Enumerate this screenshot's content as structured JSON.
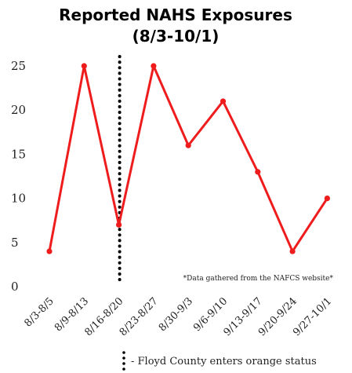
{
  "chart_data": {
    "type": "line",
    "title_lines": [
      "Reported NAHS Exposures",
      "(8/3-10/1)"
    ],
    "categories": [
      "8/3-8/5",
      "8/9-8/13",
      "8/16-8/20",
      "8/23-8/27",
      "8/30-9/3",
      "9/6-9/10",
      "9/13-9/17",
      "9/20-9/24",
      "9/27-10/1"
    ],
    "series": [
      {
        "values": [
          4,
          25,
          7,
          25,
          16,
          21,
          13,
          4,
          10
        ],
        "color": "#ee1c1c"
      }
    ],
    "ylim": [
      0,
      25
    ],
    "yticks": [
      0,
      5,
      10,
      15,
      20,
      25
    ],
    "grid": false,
    "annotation": "*Data gathered from the NAFCS website*",
    "marker_line": {
      "between": [
        "8/16-8/20",
        "8/23-8/27"
      ],
      "style": "dotted",
      "color": "#000000"
    },
    "legend": {
      "text": "- Floyd County enters orange status",
      "placement": "bottom"
    }
  }
}
